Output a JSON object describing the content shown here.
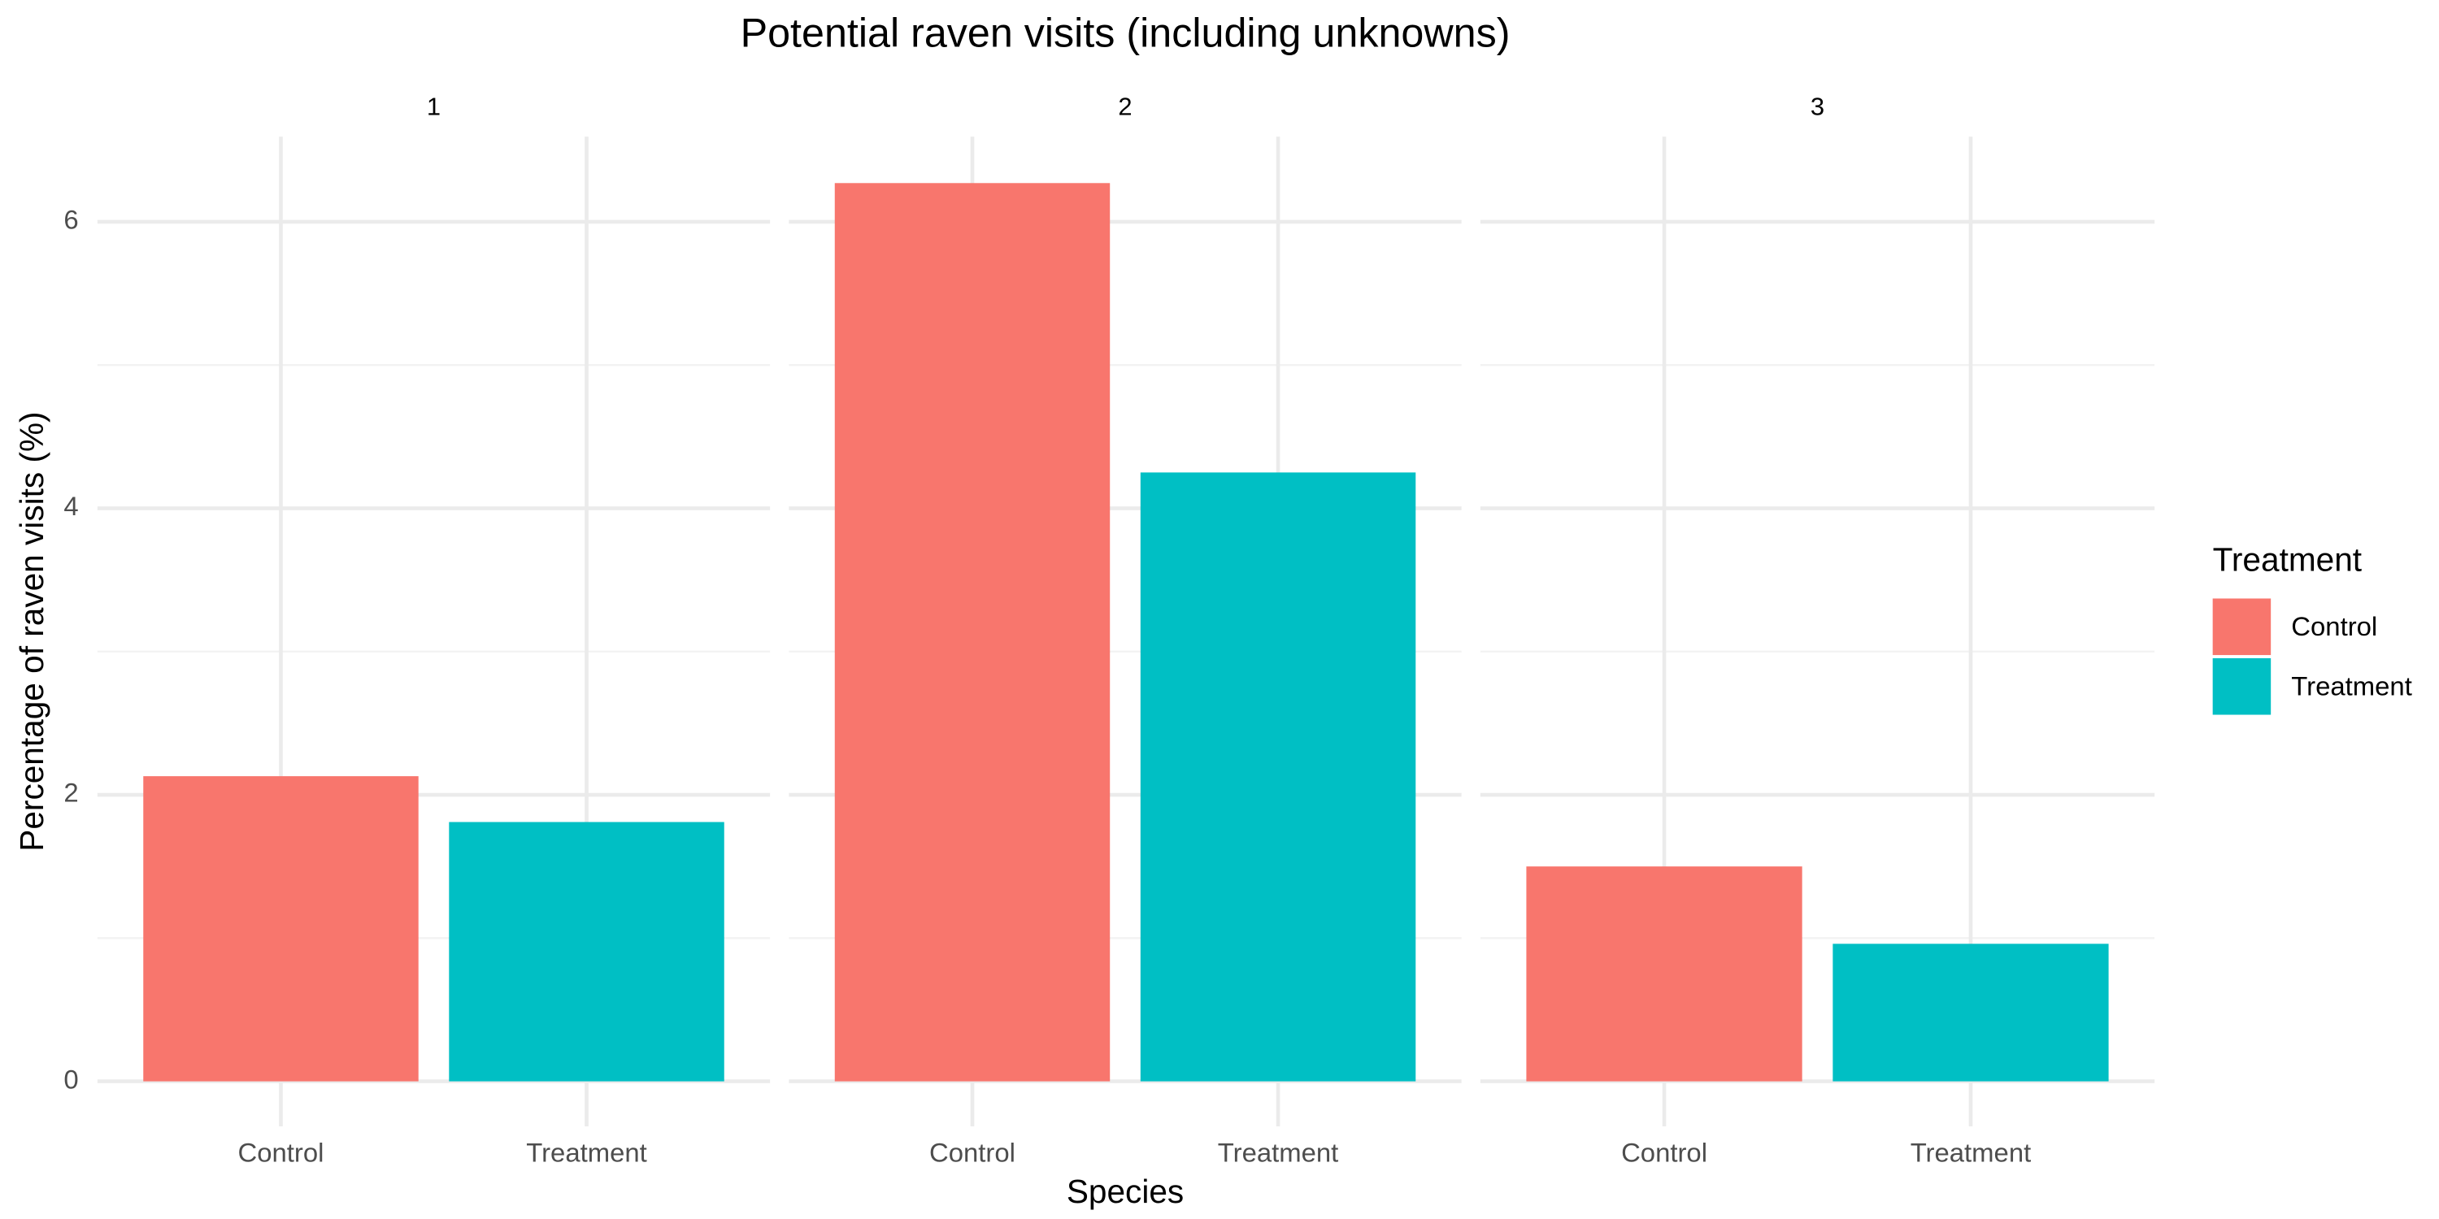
{
  "chart_data": {
    "type": "bar",
    "title": "Potential raven visits (including unknowns)",
    "xlabel": "Species",
    "ylabel": "Percentage of raven visits (%)",
    "legend_title": "Treatment",
    "legend_position": "right",
    "grid": true,
    "categories": [
      "Control",
      "Treatment"
    ],
    "colors": [
      "#f8766d",
      "#00bfc4"
    ],
    "ylim": [
      -0.314,
      6.594
    ],
    "yticks": [
      0,
      2,
      4,
      6
    ],
    "yminor": [
      1,
      3,
      5
    ],
    "facets": [
      {
        "label": "1",
        "values": [
          2.13,
          1.81
        ]
      },
      {
        "label": "2",
        "values": [
          6.27,
          4.25
        ]
      },
      {
        "label": "3",
        "values": [
          1.5,
          0.96
        ]
      }
    ]
  }
}
